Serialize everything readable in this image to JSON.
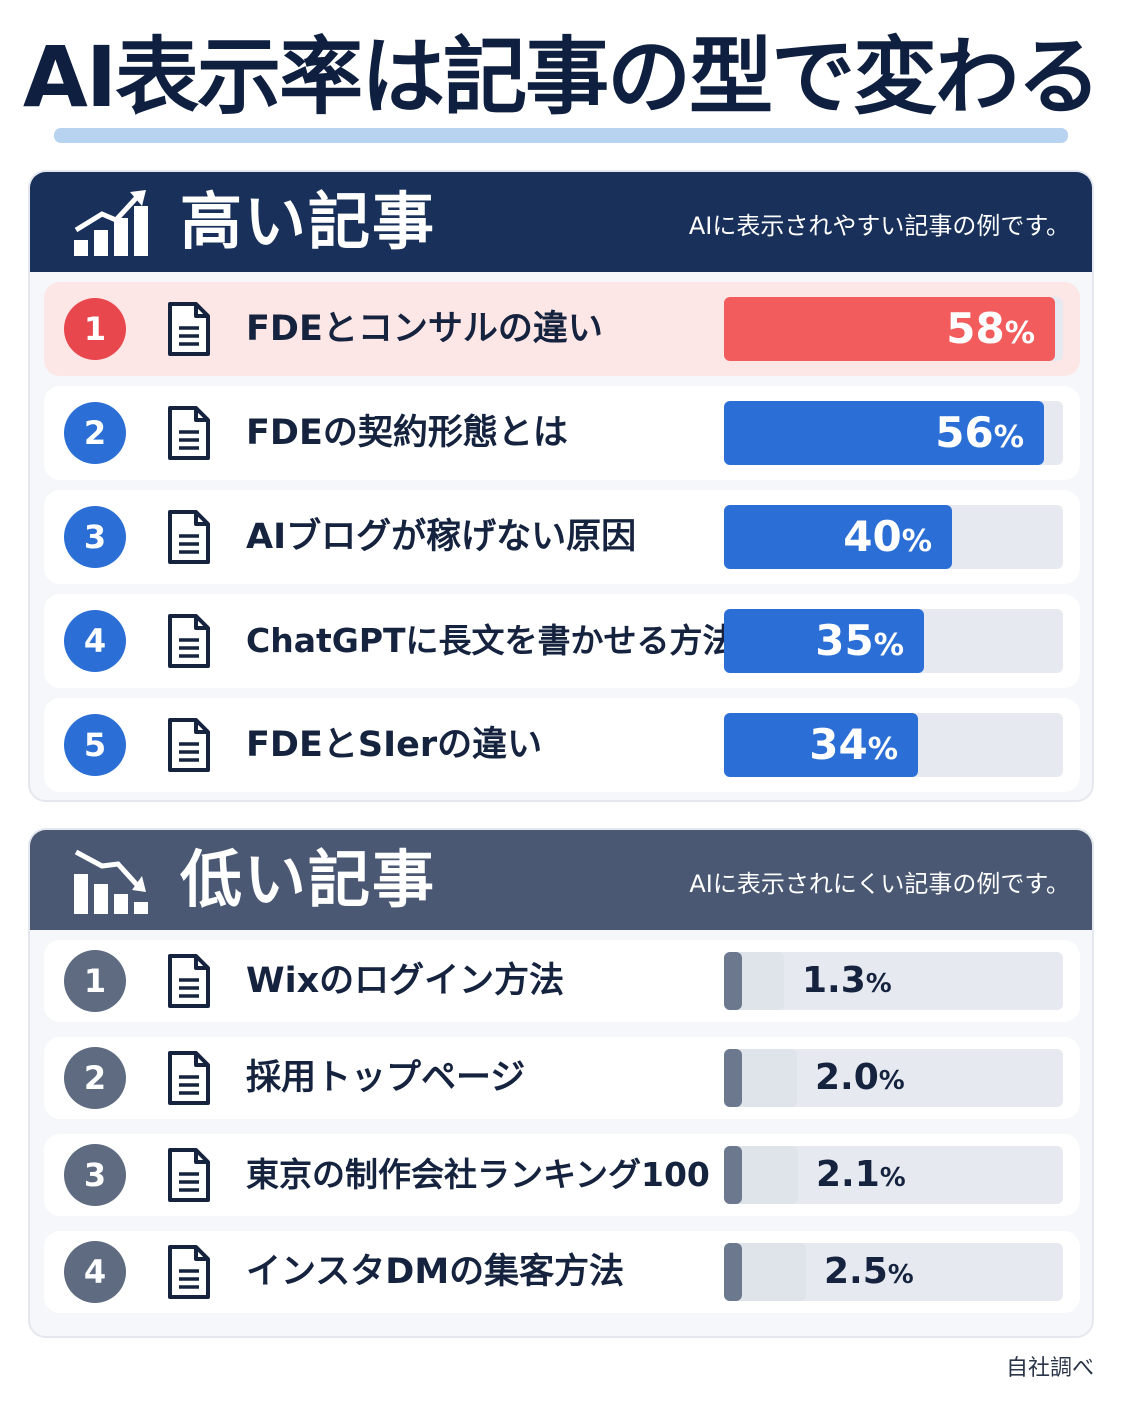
{
  "title": "AI表示率は記事の型で変わる",
  "high": {
    "heading": "高い記事",
    "subtitle": "AIに表示されやすい記事の例です。",
    "icon": "rising-bar-chart-icon",
    "items": [
      {
        "rank": "1",
        "label": "FDEとコンサルの違い",
        "value": 58,
        "value_text": "58",
        "unit": "%"
      },
      {
        "rank": "2",
        "label": "FDEの契約形態とは",
        "value": 56,
        "value_text": "56",
        "unit": "%"
      },
      {
        "rank": "3",
        "label": "AIブログが稼げない原因",
        "value": 40,
        "value_text": "40",
        "unit": "%"
      },
      {
        "rank": "4",
        "label": "ChatGPTに長文を書かせる方法",
        "value": 35,
        "value_text": "35",
        "unit": "%"
      },
      {
        "rank": "5",
        "label": "FDEとSIerの違い",
        "value": 34,
        "value_text": "34",
        "unit": "%"
      }
    ]
  },
  "low": {
    "heading": "低い記事",
    "subtitle": "AIに表示されにくい記事の例です。",
    "icon": "falling-bar-chart-icon",
    "items": [
      {
        "rank": "1",
        "label": "Wixのログイン方法",
        "value": 1.3,
        "value_text": "1.3",
        "unit": "%"
      },
      {
        "rank": "2",
        "label": "採用トップページ",
        "value": 2.0,
        "value_text": "2.0",
        "unit": "%"
      },
      {
        "rank": "3",
        "label": "東京の制作会社ランキング100",
        "value": 2.1,
        "value_text": "2.1",
        "unit": "%"
      },
      {
        "rank": "4",
        "label": "インスタDMの集客方法",
        "value": 2.5,
        "value_text": "2.5",
        "unit": "%"
      }
    ]
  },
  "source": "自社調べ",
  "colors": {
    "navy": "#18305a",
    "slate": "#4a5873",
    "top_bar": "#f25c5c",
    "high_bar": "#2b6fd6",
    "low_bar": "#6b788d",
    "rank_top": "#e8474e",
    "rank_high": "#2b6fd6",
    "rank_low": "#5e6b80"
  },
  "chart_data": [
    {
      "type": "bar",
      "title": "高い記事",
      "categories": [
        "FDEとコンサルの違い",
        "FDEの契約形態とは",
        "AIブログが稼げない原因",
        "ChatGPTに長文を書かせる方法",
        "FDEとSIerの違い"
      ],
      "values": [
        58,
        56,
        40,
        35,
        34
      ],
      "ylim": [
        0,
        60
      ]
    },
    {
      "type": "bar",
      "title": "低い記事",
      "categories": [
        "Wixのログイン方法",
        "採用トップページ",
        "東京の制作会社ランキング100",
        "インスタDMの集客方法"
      ],
      "values": [
        1.3,
        2.0,
        2.1,
        2.5
      ]
    }
  ]
}
